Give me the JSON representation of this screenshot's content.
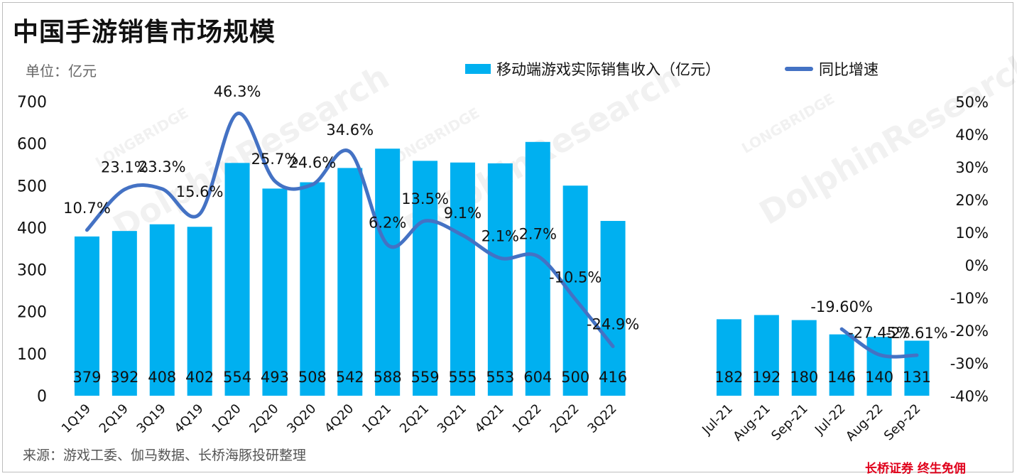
{
  "title": "中国手游销售市场规模",
  "unit_label": "单位：亿元",
  "source": "来源：游戏工委、伽马数据、长桥海豚投研整理",
  "brand": "长桥证券 终生免佣",
  "watermark": {
    "main": "DolphinResearch",
    "sub": "LONGBRIDGE"
  },
  "colors": {
    "bar": "#00b0f0",
    "line": "#4472c4",
    "text": "#111111"
  },
  "chart_data": {
    "type": "bar",
    "legend": {
      "bar_label": "移动端游戏实际销售收入（亿元）",
      "line_label": "同比增速",
      "placement": "top"
    },
    "left_axis": {
      "min": 0,
      "max": 700,
      "ticks": [
        "0",
        "100",
        "200",
        "300",
        "400",
        "500",
        "600",
        "700"
      ]
    },
    "right_axis": {
      "min": -40,
      "max": 50,
      "ticks": [
        "-40%",
        "-30%",
        "-20%",
        "-10%",
        "0%",
        "10%",
        "20%",
        "30%",
        "40%",
        "50%"
      ]
    },
    "groups": [
      {
        "categories": [
          "1Q19",
          "2Q19",
          "3Q19",
          "4Q19",
          "1Q20",
          "2Q20",
          "3Q20",
          "4Q20",
          "1Q21",
          "2Q21",
          "3Q21",
          "4Q21",
          "1Q22",
          "2Q22",
          "3Q22"
        ],
        "values": [
          379,
          392,
          408,
          402,
          554,
          493,
          508,
          542,
          588,
          559,
          555,
          553,
          604,
          500,
          416
        ],
        "value_labels": [
          "379",
          "392",
          "408",
          "402",
          "554",
          "493",
          "508",
          "542",
          "588",
          "559",
          "555",
          "553",
          "604",
          "500",
          "416"
        ],
        "growth": [
          10.7,
          23.1,
          23.3,
          15.6,
          46.3,
          25.7,
          24.6,
          34.6,
          6.2,
          13.5,
          9.1,
          2.1,
          2.7,
          -10.5,
          -24.9
        ],
        "growth_labels": [
          "10.7%",
          "23.1%",
          "23.3%",
          "15.6%",
          "46.3%",
          "25.7%",
          "24.6%",
          "34.6%",
          "6.2%",
          "13.5%",
          "9.1%",
          "2.1%",
          "2.7%",
          "-10.5%",
          "-24.9%"
        ]
      },
      {
        "categories": [
          "Jul-21",
          "Aug-21",
          "Sep-21",
          "Jul-22",
          "Aug-22",
          "Sep-22"
        ],
        "values": [
          182,
          192,
          180,
          146,
          140,
          131
        ],
        "value_labels": [
          "182",
          "192",
          "180",
          "146",
          "140",
          "131"
        ],
        "growth": [
          null,
          null,
          null,
          -19.6,
          -27.45,
          -27.61
        ],
        "growth_labels": [
          "",
          "",
          "",
          "-19.60%",
          "-27.45%",
          "-27.61%"
        ]
      }
    ]
  }
}
